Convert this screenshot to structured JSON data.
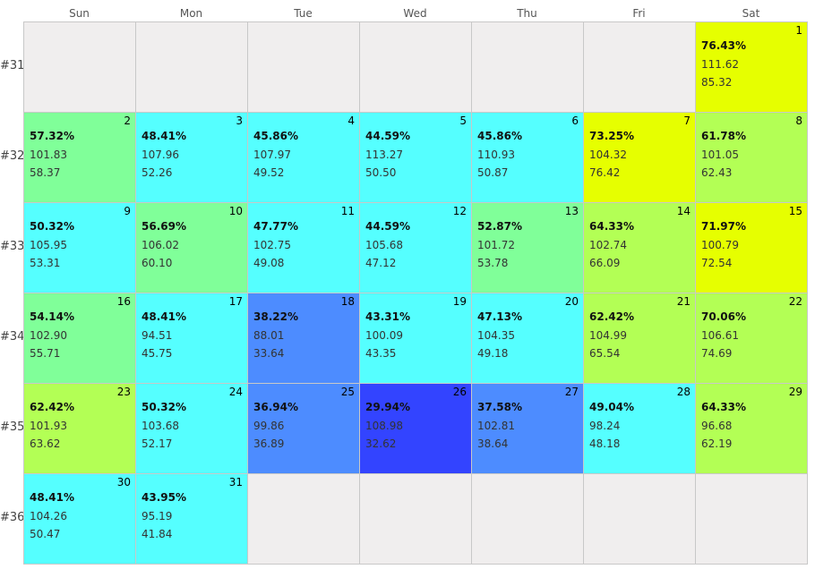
{
  "chart_data": {
    "type": "heatmap",
    "weekdays": [
      "Sun",
      "Mon",
      "Tue",
      "Wed",
      "Thu",
      "Fri",
      "Sat"
    ],
    "weeks": [
      "#31",
      "#32",
      "#33",
      "#34",
      "#35",
      "#36"
    ],
    "first_weekday": 6,
    "days": [
      {
        "day": "1",
        "pct": "76.43%",
        "a": "111.62",
        "b": "85.32",
        "color": "#e6ff00"
      },
      {
        "day": "2",
        "pct": "57.32%",
        "a": "101.83",
        "b": "58.37",
        "color": "#80ff99"
      },
      {
        "day": "3",
        "pct": "48.41%",
        "a": "107.96",
        "b": "52.26",
        "color": "#55ffff"
      },
      {
        "day": "4",
        "pct": "45.86%",
        "a": "107.97",
        "b": "49.52",
        "color": "#55ffff"
      },
      {
        "day": "5",
        "pct": "44.59%",
        "a": "113.27",
        "b": "50.50",
        "color": "#55ffff"
      },
      {
        "day": "6",
        "pct": "45.86%",
        "a": "110.93",
        "b": "50.87",
        "color": "#55ffff"
      },
      {
        "day": "7",
        "pct": "73.25%",
        "a": "104.32",
        "b": "76.42",
        "color": "#e6ff00"
      },
      {
        "day": "8",
        "pct": "61.78%",
        "a": "101.05",
        "b": "62.43",
        "color": "#b3ff55"
      },
      {
        "day": "9",
        "pct": "50.32%",
        "a": "105.95",
        "b": "53.31",
        "color": "#55ffff"
      },
      {
        "day": "10",
        "pct": "56.69%",
        "a": "106.02",
        "b": "60.10",
        "color": "#80ff99"
      },
      {
        "day": "11",
        "pct": "47.77%",
        "a": "102.75",
        "b": "49.08",
        "color": "#55ffff"
      },
      {
        "day": "12",
        "pct": "44.59%",
        "a": "105.68",
        "b": "47.12",
        "color": "#55ffff"
      },
      {
        "day": "13",
        "pct": "52.87%",
        "a": "101.72",
        "b": "53.78",
        "color": "#80ff99"
      },
      {
        "day": "14",
        "pct": "64.33%",
        "a": "102.74",
        "b": "66.09",
        "color": "#b3ff55"
      },
      {
        "day": "15",
        "pct": "71.97%",
        "a": "100.79",
        "b": "72.54",
        "color": "#e6ff00"
      },
      {
        "day": "16",
        "pct": "54.14%",
        "a": "102.90",
        "b": "55.71",
        "color": "#80ff99"
      },
      {
        "day": "17",
        "pct": "48.41%",
        "a": "94.51",
        "b": "45.75",
        "color": "#55ffff"
      },
      {
        "day": "18",
        "pct": "38.22%",
        "a": "88.01",
        "b": "33.64",
        "color": "#4d8cff"
      },
      {
        "day": "19",
        "pct": "43.31%",
        "a": "100.09",
        "b": "43.35",
        "color": "#55ffff"
      },
      {
        "day": "20",
        "pct": "47.13%",
        "a": "104.35",
        "b": "49.18",
        "color": "#55ffff"
      },
      {
        "day": "21",
        "pct": "62.42%",
        "a": "104.99",
        "b": "65.54",
        "color": "#b3ff55"
      },
      {
        "day": "22",
        "pct": "70.06%",
        "a": "106.61",
        "b": "74.69",
        "color": "#b3ff55"
      },
      {
        "day": "23",
        "pct": "62.42%",
        "a": "101.93",
        "b": "63.62",
        "color": "#b3ff55"
      },
      {
        "day": "24",
        "pct": "50.32%",
        "a": "103.68",
        "b": "52.17",
        "color": "#55ffff"
      },
      {
        "day": "25",
        "pct": "36.94%",
        "a": "99.86",
        "b": "36.89",
        "color": "#4d8cff"
      },
      {
        "day": "26",
        "pct": "29.94%",
        "a": "108.98",
        "b": "32.62",
        "color": "#3344ff"
      },
      {
        "day": "27",
        "pct": "37.58%",
        "a": "102.81",
        "b": "38.64",
        "color": "#4d8cff"
      },
      {
        "day": "28",
        "pct": "49.04%",
        "a": "98.24",
        "b": "48.18",
        "color": "#55ffff"
      },
      {
        "day": "29",
        "pct": "64.33%",
        "a": "96.68",
        "b": "62.19",
        "color": "#b3ff55"
      },
      {
        "day": "30",
        "pct": "48.41%",
        "a": "104.26",
        "b": "50.47",
        "color": "#55ffff"
      },
      {
        "day": "31",
        "pct": "43.95%",
        "a": "95.19",
        "b": "41.84",
        "color": "#55ffff"
      }
    ],
    "empty_color": "#f0eeee"
  }
}
